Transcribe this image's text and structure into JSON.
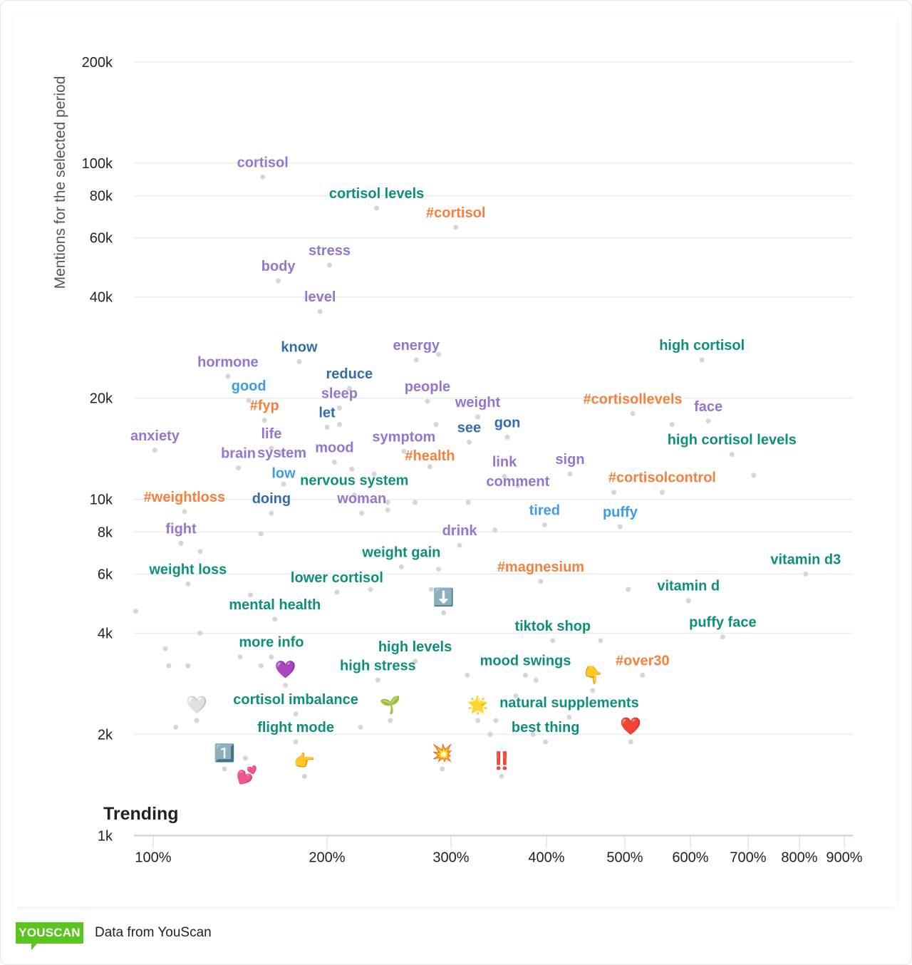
{
  "chart_data": {
    "type": "scatter",
    "title": "",
    "xlabel": "Trending",
    "ylabel": "Mentions for the selected period",
    "x_scale": "log-like",
    "y_scale": "log",
    "x_ticks": [
      100,
      200,
      300,
      400,
      500,
      600,
      700,
      800,
      900
    ],
    "x_tick_labels": [
      "100%",
      "200%",
      "300%",
      "400%",
      "500%",
      "600%",
      "700%",
      "800%",
      "900%"
    ],
    "y_ticks": [
      1000,
      2000,
      4000,
      6000,
      8000,
      10000,
      20000,
      40000,
      60000,
      80000,
      100000,
      200000
    ],
    "y_tick_labels": [
      "1k",
      "2k",
      "4k",
      "6k",
      "8k",
      "10k",
      "20k",
      "40k",
      "60k",
      "80k",
      "100k",
      "200k"
    ],
    "ylim": [
      1000,
      200000
    ],
    "grid": true,
    "colors": {
      "word": "#9575cd",
      "phrase": "#0e8f7b",
      "hashtag": "#f5813f",
      "verb": "#336ca8",
      "adjective": "#3e9ce6",
      "dot": "#d6d6d6"
    },
    "points": [
      {
        "label": "cortisol",
        "x": 163,
        "y": 91000,
        "type": "word"
      },
      {
        "label": "cortisol levels",
        "x": 240,
        "y": 73500,
        "type": "phrase"
      },
      {
        "label": "#cortisol",
        "x": 305,
        "y": 64500,
        "type": "hashtag"
      },
      {
        "label": "stress",
        "x": 202,
        "y": 49800,
        "type": "word"
      },
      {
        "label": "body",
        "x": 172,
        "y": 44700,
        "type": "word"
      },
      {
        "label": "level",
        "x": 196,
        "y": 36200,
        "type": "word"
      },
      {
        "label": "know",
        "x": 184,
        "y": 25700,
        "type": "verb"
      },
      {
        "label": "energy",
        "x": 272,
        "y": 26000,
        "type": "word"
      },
      {
        "label": "high cortisol",
        "x": 620,
        "y": 26000,
        "type": "phrase"
      },
      {
        "label": "hormone",
        "x": 143,
        "y": 23200,
        "type": "word"
      },
      {
        "label": "reduce",
        "x": 218,
        "y": 21400,
        "type": "verb"
      },
      {
        "label": "good",
        "x": 155,
        "y": 19700,
        "type": "adjective"
      },
      {
        "label": "sleep",
        "x": 210,
        "y": 18700,
        "type": "word"
      },
      {
        "label": "#fyp",
        "x": 164,
        "y": 17200,
        "type": "hashtag"
      },
      {
        "label": "let",
        "x": 200,
        "y": 16400,
        "type": "verb"
      },
      {
        "label": "people",
        "x": 281,
        "y": 19600,
        "type": "word"
      },
      {
        "label": "weight",
        "x": 328,
        "y": 17600,
        "type": "word"
      },
      {
        "label": "see",
        "x": 319,
        "y": 14800,
        "type": "verb"
      },
      {
        "label": "gon",
        "x": 359,
        "y": 15300,
        "type": "verb"
      },
      {
        "label": "#cortisollevels",
        "x": 512,
        "y": 18000,
        "type": "hashtag"
      },
      {
        "label": "face",
        "x": 631,
        "y": 17100,
        "type": "word"
      },
      {
        "label": "high cortisol levels",
        "x": 672,
        "y": 13600,
        "type": "phrase"
      },
      {
        "label": "anxiety",
        "x": 101,
        "y": 14000,
        "type": "word"
      },
      {
        "label": "life",
        "x": 168,
        "y": 14200,
        "type": "word"
      },
      {
        "label": "system",
        "x": 174,
        "y": 13700,
        "type": "word"
      },
      {
        "label": "mood",
        "x": 206,
        "y": 12900,
        "type": "word"
      },
      {
        "label": "symptom",
        "x": 262,
        "y": 13900,
        "type": "word"
      },
      {
        "label": "#health",
        "x": 283,
        "y": 12500,
        "type": "hashtag"
      },
      {
        "label": "link",
        "x": 356,
        "y": 11700,
        "type": "word"
      },
      {
        "label": "sign",
        "x": 430,
        "y": 11900,
        "type": "word"
      },
      {
        "label": "brain",
        "x": 149,
        "y": 12400,
        "type": "word"
      },
      {
        "label": "low",
        "x": 175,
        "y": 11100,
        "type": "adjective"
      },
      {
        "label": "nervous system",
        "x": 222,
        "y": 10300,
        "type": "phrase"
      },
      {
        "label": "comment",
        "x": 370,
        "y": 11000,
        "type": "word"
      },
      {
        "label": "#cortisolcontrol",
        "x": 557,
        "y": 10500,
        "type": "hashtag"
      },
      {
        "label": "#weightloss",
        "x": 118,
        "y": 9200,
        "type": "hashtag"
      },
      {
        "label": "doing",
        "x": 168,
        "y": 9100,
        "type": "verb"
      },
      {
        "label": "woman",
        "x": 228,
        "y": 9100,
        "type": "word"
      },
      {
        "label": "tired",
        "x": 398,
        "y": 8400,
        "type": "adjective"
      },
      {
        "label": "puffy",
        "x": 494,
        "y": 8300,
        "type": "adjective"
      },
      {
        "label": "fight",
        "x": 116,
        "y": 7400,
        "type": "word"
      },
      {
        "label": "drink",
        "x": 309,
        "y": 7300,
        "type": "word"
      },
      {
        "label": "weight gain",
        "x": 260,
        "y": 6300,
        "type": "phrase"
      },
      {
        "label": "vitamin d3",
        "x": 814,
        "y": 6000,
        "type": "phrase"
      },
      {
        "label": "#magnesium",
        "x": 394,
        "y": 5700,
        "type": "hashtag"
      },
      {
        "label": "weight loss",
        "x": 120,
        "y": 5600,
        "type": "phrase"
      },
      {
        "label": "lower cortisol",
        "x": 208,
        "y": 5300,
        "type": "phrase"
      },
      {
        "label": "vitamin d",
        "x": 597,
        "y": 5000,
        "type": "phrase"
      },
      {
        "label": "mental health",
        "x": 170,
        "y": 4400,
        "type": "phrase"
      },
      {
        "label": "⬇️",
        "x": 294,
        "y": 4600,
        "type": "emoji"
      },
      {
        "label": "tiktok shop",
        "x": 408,
        "y": 3800,
        "type": "phrase"
      },
      {
        "label": "puffy face",
        "x": 656,
        "y": 3900,
        "type": "phrase"
      },
      {
        "label": "more info",
        "x": 168,
        "y": 3400,
        "type": "phrase"
      },
      {
        "label": "high levels",
        "x": 271,
        "y": 3300,
        "type": "phrase"
      },
      {
        "label": "💜",
        "x": 176,
        "y": 2800,
        "type": "emoji"
      },
      {
        "label": "high stress",
        "x": 241,
        "y": 2900,
        "type": "phrase"
      },
      {
        "label": "mood swings",
        "x": 378,
        "y": 3000,
        "type": "phrase"
      },
      {
        "label": "👇",
        "x": 459,
        "y": 2700,
        "type": "emoji"
      },
      {
        "label": "#over30",
        "x": 527,
        "y": 3000,
        "type": "hashtag"
      },
      {
        "label": "🤍",
        "x": 125,
        "y": 2200,
        "type": "emoji"
      },
      {
        "label": "cortisol imbalance",
        "x": 182,
        "y": 2300,
        "type": "phrase"
      },
      {
        "label": "🌱",
        "x": 251,
        "y": 2200,
        "type": "emoji"
      },
      {
        "label": "🌟",
        "x": 328,
        "y": 2200,
        "type": "emoji"
      },
      {
        "label": "natural supplements",
        "x": 429,
        "y": 2250,
        "type": "phrase"
      },
      {
        "label": "flight mode",
        "x": 182,
        "y": 1900,
        "type": "phrase"
      },
      {
        "label": "best thing",
        "x": 399,
        "y": 1900,
        "type": "phrase"
      },
      {
        "label": "❤️",
        "x": 509,
        "y": 1900,
        "type": "emoji"
      },
      {
        "label": "1️⃣",
        "x": 141,
        "y": 1580,
        "type": "emoji"
      },
      {
        "label": "💕",
        "x": 154,
        "y": 1500,
        "type": "emoji"
      },
      {
        "label": "👉",
        "x": 187,
        "y": 1500,
        "type": "emoji"
      },
      {
        "label": "💥",
        "x": 293,
        "y": 1580,
        "type": "emoji"
      },
      {
        "label": "‼️",
        "x": 353,
        "y": 1500,
        "type": "emoji"
      }
    ],
    "unlabeled_points": [
      [
        90,
        4650
      ],
      [
        107,
        3600
      ],
      [
        109,
        3200
      ],
      [
        120,
        3200
      ],
      [
        113,
        2100
      ],
      [
        127,
        7000
      ],
      [
        127,
        4000
      ],
      [
        156,
        5200
      ],
      [
        150,
        3400
      ],
      [
        162,
        3200
      ],
      [
        162,
        7900
      ],
      [
        210,
        16700
      ],
      [
        220,
        12300
      ],
      [
        238,
        11900
      ],
      [
        249,
        9800
      ],
      [
        249,
        9300
      ],
      [
        271,
        9800
      ],
      [
        288,
        16700
      ],
      [
        290,
        27000
      ],
      [
        318,
        9800
      ],
      [
        346,
        8100
      ],
      [
        235,
        5400
      ],
      [
        284,
        5400
      ],
      [
        290,
        6200
      ],
      [
        317,
        3000
      ],
      [
        368,
        2600
      ],
      [
        389,
        2900
      ],
      [
        469,
        3800
      ],
      [
        505,
        5400
      ],
      [
        486,
        10500
      ],
      [
        711,
        11800
      ],
      [
        572,
        16700
      ],
      [
        227,
        2100
      ],
      [
        347,
        2200
      ],
      [
        341,
        2000
      ],
      [
        386,
        2000
      ],
      [
        153,
        1700
      ]
    ]
  },
  "footer": {
    "logo": "YOUSCAN",
    "source": "Data from YouScan"
  }
}
